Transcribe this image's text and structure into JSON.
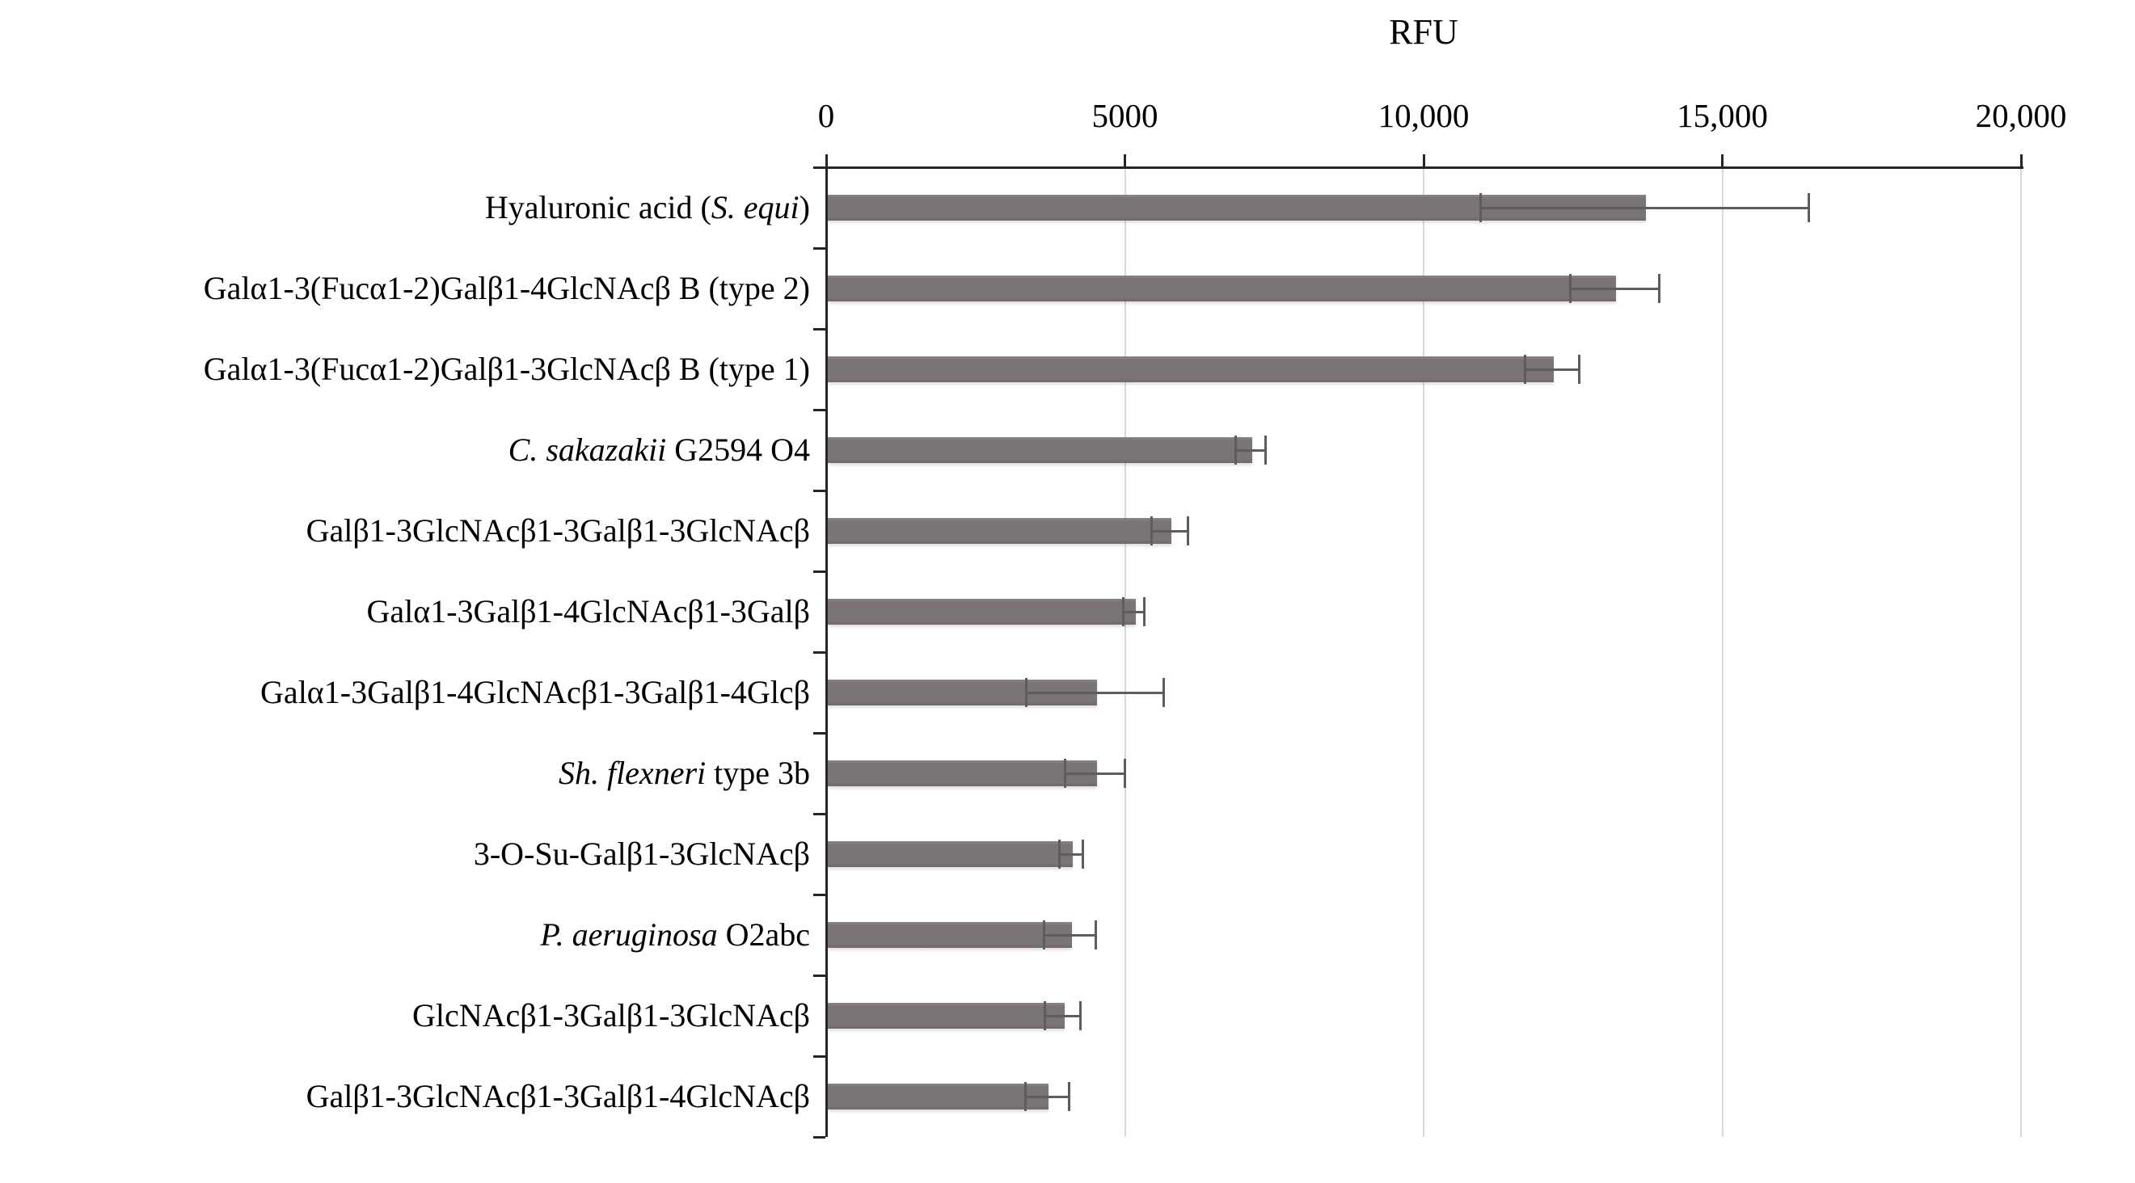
{
  "title": "RFU",
  "colors": {
    "bar_fill": "#7b7474",
    "error_bar": "#5f5c5c",
    "gridline": "#d9d9d9",
    "axis": "#262626",
    "text": "#000000",
    "background": "#ffffff"
  },
  "chart_data": {
    "type": "bar",
    "orientation": "horizontal",
    "title": "RFU",
    "xlabel": "RFU",
    "ylabel": "",
    "xlim": [
      0,
      20000
    ],
    "xticks": [
      0,
      5000,
      10000,
      15000,
      20000
    ],
    "xtick_labels": [
      "0",
      "5000",
      "10,000",
      "15,000",
      "20,000"
    ],
    "grid": true,
    "axis_position": "top",
    "legend": "none",
    "categories": [
      "Hyaluronic acid (S. equi)",
      "Galα1-3(Fucα1-2)Galβ1-4GlcNAcβ B (type 2)",
      "Galα1-3(Fucα1-2)Galβ1-3GlcNAcβ B (type 1)",
      "C. sakazakii G2594 O4",
      "Galβ1-3GlcNAcβ1-3Galβ1-3GlcNAcβ",
      "Galα1-3Galβ1-4GlcNAcβ1-3Galβ",
      "Galα1-3Galβ1-4GlcNAcβ1-3Galβ1-4Glcβ",
      "Sh. flexneri type 3b",
      "3-O-Su-Galβ1-3GlcNAcβ",
      "P. aeruginosa O2abc",
      "GlcNAcβ1-3Galβ1-3GlcNAcβ",
      "Galβ1-3GlcNAcβ1-3Galβ1-4GlcNAcβ"
    ],
    "categories_rich": [
      [
        {
          "text": "Hyaluronic acid (",
          "italic": false
        },
        {
          "text": "S. equi",
          "italic": true
        },
        {
          "text": ")",
          "italic": false
        }
      ],
      [
        {
          "text": "Galα1-3(Fucα1-2)Galβ1-4GlcNAcβ B (type 2)",
          "italic": false
        }
      ],
      [
        {
          "text": "Galα1-3(Fucα1-2)Galβ1-3GlcNAcβ B (type 1)",
          "italic": false
        }
      ],
      [
        {
          "text": "C. sakazakii",
          "italic": true
        },
        {
          "text": " G2594 O4",
          "italic": false
        }
      ],
      [
        {
          "text": "Galβ1-3GlcNAcβ1-3Galβ1-3GlcNAcβ",
          "italic": false
        }
      ],
      [
        {
          "text": "Galα1-3Galβ1-4GlcNAcβ1-3Galβ",
          "italic": false
        }
      ],
      [
        {
          "text": "Galα1-3Galβ1-4GlcNAcβ1-3Galβ1-4Glcβ",
          "italic": false
        }
      ],
      [
        {
          "text": "Sh. flexneri",
          "italic": true
        },
        {
          "text": " type 3b",
          "italic": false
        }
      ],
      [
        {
          "text": "3-O-Su-Galβ1-3GlcNAcβ",
          "italic": false
        }
      ],
      [
        {
          "text": "P. aeruginosa",
          "italic": true
        },
        {
          "text": " O2abc",
          "italic": false
        }
      ],
      [
        {
          "text": "GlcNAcβ1-3Galβ1-3GlcNAcβ",
          "italic": false
        }
      ],
      [
        {
          "text": "Galβ1-3GlcNAcβ1-3Galβ1-4GlcNAcβ",
          "italic": false
        }
      ]
    ],
    "values": [
      13700,
      13200,
      12150,
      7100,
      5750,
      5150,
      4500,
      4500,
      4100,
      4080,
      3960,
      3700
    ],
    "errors": [
      2750,
      750,
      450,
      250,
      300,
      175,
      1150,
      500,
      200,
      430,
      300,
      360
    ]
  }
}
